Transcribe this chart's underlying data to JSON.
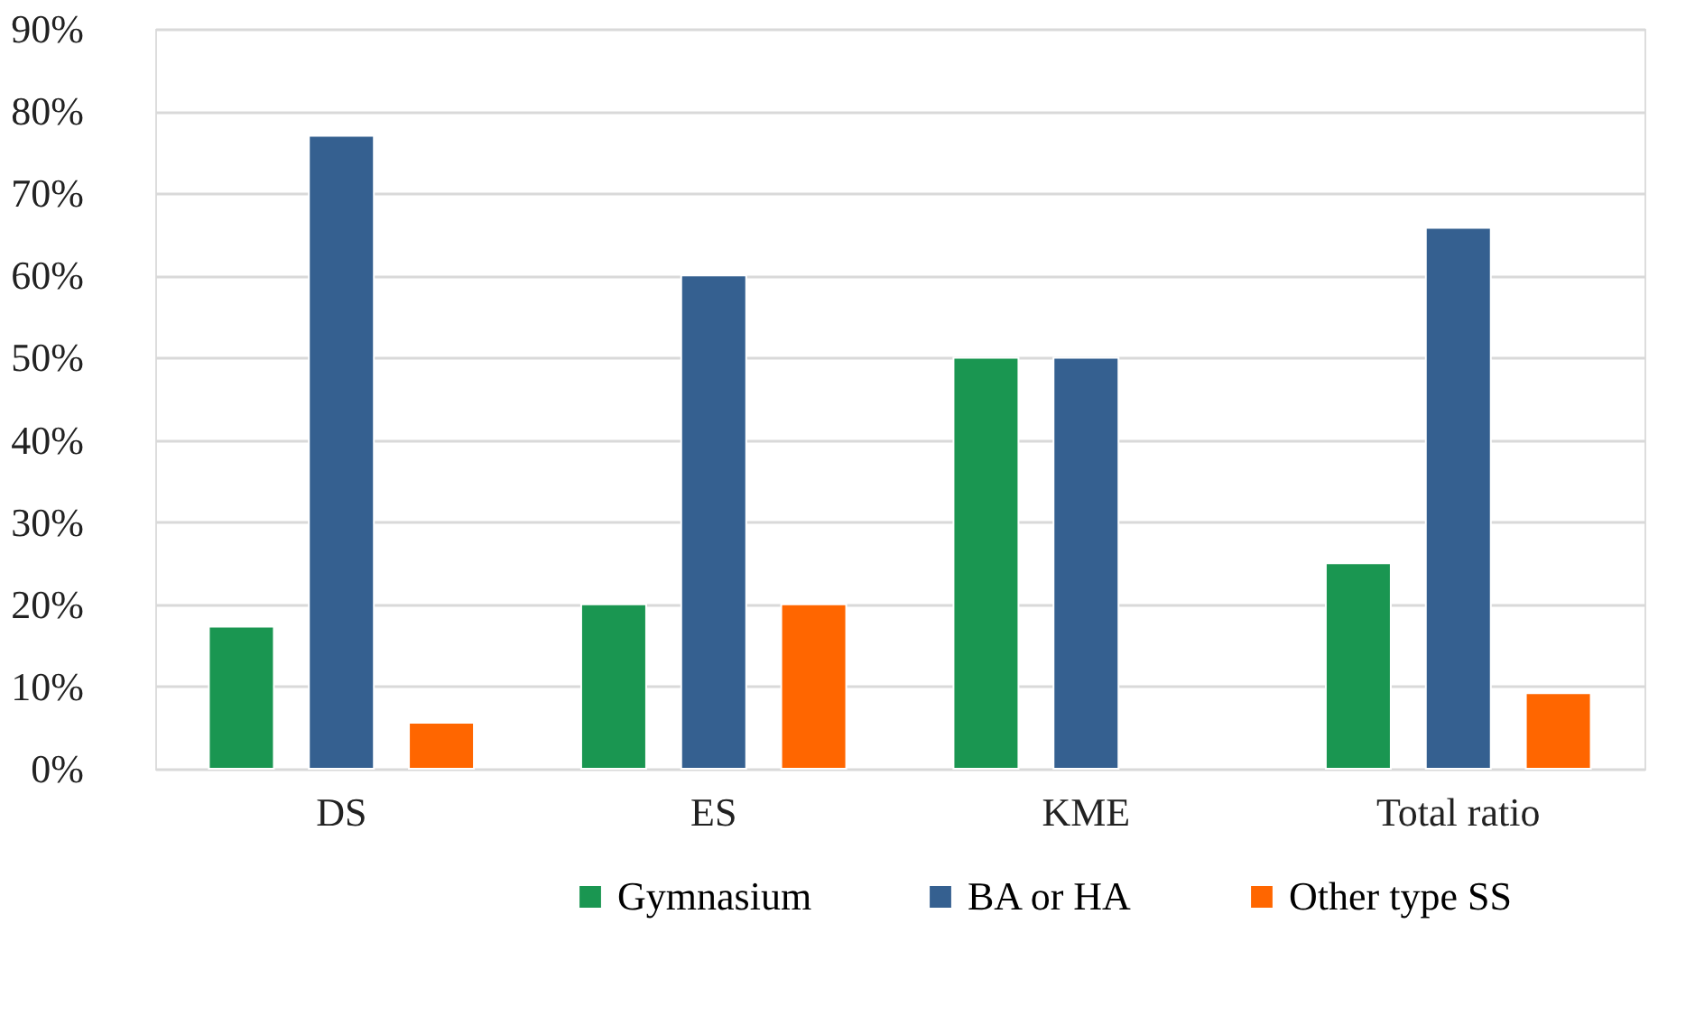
{
  "chart_data": {
    "type": "bar",
    "categories": [
      "DS",
      "ES",
      "KME",
      "Total ratio"
    ],
    "series": [
      {
        "name": "Gymnasium",
        "color": "#1a9651",
        "values": [
          17.3,
          20,
          50,
          25
        ]
      },
      {
        "name": "BA or HA",
        "color": "#356090",
        "values": [
          77,
          60,
          50,
          65.8
        ]
      },
      {
        "name": "Other type SS",
        "color": "#ff6600",
        "values": [
          5.6,
          20,
          null,
          9.2
        ]
      }
    ],
    "ylim": [
      0,
      90
    ],
    "yticks": [
      {
        "value": 0,
        "label": "0%"
      },
      {
        "value": 10,
        "label": "10%"
      },
      {
        "value": 20,
        "label": "20%"
      },
      {
        "value": 30,
        "label": "30%"
      },
      {
        "value": 40,
        "label": "40%"
      },
      {
        "value": 50,
        "label": "50%"
      },
      {
        "value": 60,
        "label": "60%"
      },
      {
        "value": 70,
        "label": "70%"
      },
      {
        "value": 80,
        "label": "80%"
      },
      {
        "value": 90,
        "label": "90%"
      }
    ],
    "grid": "y",
    "legend": "bottom"
  }
}
